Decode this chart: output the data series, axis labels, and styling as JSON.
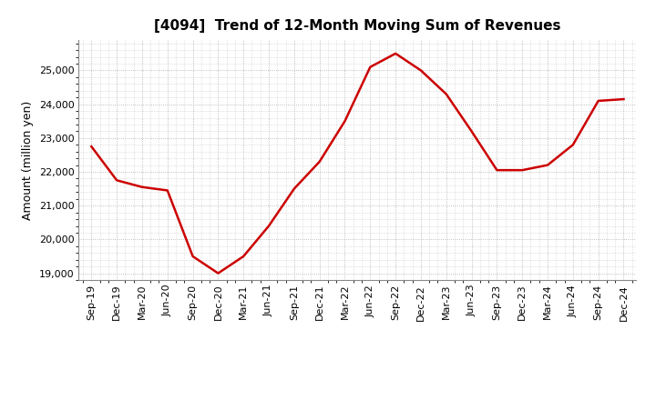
{
  "title": "[4094]  Trend of 12-Month Moving Sum of Revenues",
  "ylabel": "Amount (million yen)",
  "line_color": "#CC0000",
  "background_color": "#FFFFFF",
  "grid_color": "#AAAAAA",
  "ylim": [
    18800,
    25900
  ],
  "yticks": [
    19000,
    20000,
    21000,
    22000,
    23000,
    24000,
    25000
  ],
  "x_labels": [
    "Sep-19",
    "Dec-19",
    "Mar-20",
    "Jun-20",
    "Sep-20",
    "Dec-20",
    "Mar-21",
    "Jun-21",
    "Sep-21",
    "Dec-21",
    "Mar-22",
    "Jun-22",
    "Sep-22",
    "Dec-22",
    "Mar-23",
    "Jun-23",
    "Sep-23",
    "Dec-23",
    "Mar-24",
    "Jun-24",
    "Sep-24",
    "Dec-24"
  ],
  "y_values": [
    22750,
    21750,
    21550,
    21450,
    19500,
    19000,
    19500,
    20400,
    21500,
    22300,
    23500,
    25100,
    25500,
    25000,
    24300,
    23200,
    22050,
    22050,
    22200,
    22800,
    24100,
    24150
  ],
  "title_fontsize": 11,
  "ylabel_fontsize": 9,
  "tick_fontsize": 8
}
